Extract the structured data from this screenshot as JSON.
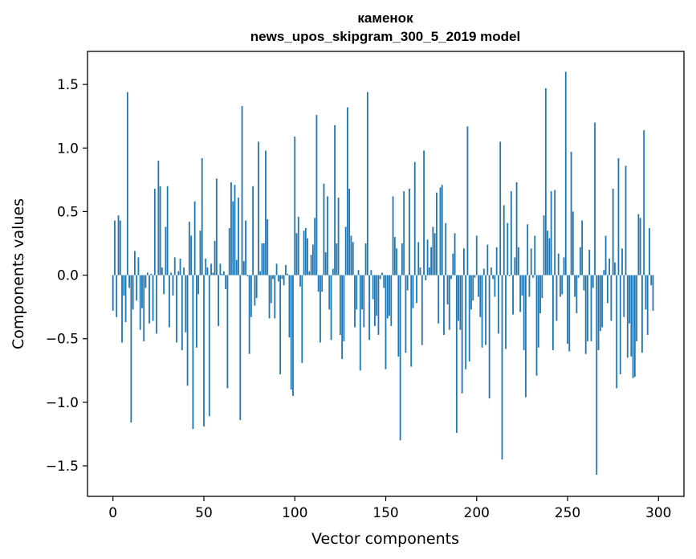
{
  "chart_data": {
    "type": "bar",
    "title": "каменок",
    "subtitle": "news_upos_skipgram_300_5_2019 model",
    "xlabel": "Vector components",
    "ylabel": "Components values",
    "xlim": [
      -14,
      314
    ],
    "ylim": [
      -1.74,
      1.76
    ],
    "xticks": [
      0,
      50,
      100,
      150,
      200,
      250,
      300
    ],
    "yticks": [
      -1.5,
      -1.0,
      -0.5,
      0.0,
      0.5,
      1.0,
      1.5
    ],
    "ytick_labels": [
      "−1.5",
      "−1.0",
      "−0.5",
      "0.0",
      "0.5",
      "1.0",
      "1.5"
    ],
    "bar_color": "#1f77b4",
    "grid": false,
    "values": [
      -0.28,
      0.43,
      -0.33,
      0.47,
      0.43,
      -0.53,
      -0.16,
      -0.37,
      1.44,
      -0.1,
      -1.16,
      -0.27,
      0.19,
      -0.2,
      0.14,
      -0.43,
      -0.26,
      -0.52,
      -0.1,
      0.02,
      -0.38,
      0.01,
      -0.36,
      0.68,
      -0.46,
      0.9,
      0.7,
      0.06,
      -0.15,
      0.38,
      0.7,
      -0.41,
      0.02,
      -0.16,
      0.14,
      -0.53,
      0.03,
      0.13,
      -0.59,
      0.06,
      -0.45,
      -0.87,
      0.42,
      0.31,
      -1.21,
      0.58,
      -0.57,
      -0.15,
      0.35,
      0.92,
      -1.19,
      0.13,
      0.06,
      -1.11,
      0.09,
      0.02,
      0.27,
      0.76,
      -0.4,
      0.09,
      0.01,
      0.03,
      -0.11,
      -0.89,
      0.37,
      0.73,
      0.58,
      0.71,
      0.12,
      0.61,
      -1.14,
      1.33,
      0.11,
      0.43,
      -0.01,
      -0.62,
      -0.33,
      0.7,
      -0.24,
      -0.18,
      1.05,
      0.03,
      0.25,
      0.25,
      0.98,
      0.44,
      -0.34,
      -0.22,
      -0.03,
      -0.34,
      0.09,
      -0.05,
      -0.78,
      -0.03,
      -0.08,
      0.08,
      0.01,
      -0.49,
      -0.9,
      -0.95,
      1.09,
      0.33,
      0.46,
      -0.09,
      -0.69,
      0.35,
      0.37,
      0.29,
      0.03,
      0.16,
      0.24,
      0.45,
      1.26,
      -0.13,
      -0.53,
      -0.13,
      0.72,
      0.18,
      0.62,
      -0.27,
      -0.51,
      0.05,
      1.18,
      0.25,
      0.61,
      -0.47,
      -0.66,
      -0.52,
      0.38,
      1.32,
      0.68,
      0.31,
      0.26,
      -0.41,
      -0.27,
      0.04,
      -0.75,
      -0.27,
      -0.41,
      0.25,
      1.44,
      -0.51,
      0.04,
      -0.19,
      -0.4,
      -0.32,
      -0.47,
      -0.03,
      0.02,
      -0.1,
      -0.74,
      -0.34,
      -0.32,
      -0.4,
      0.62,
      0.3,
      0.21,
      -0.64,
      -1.3,
      0.25,
      0.66,
      -0.61,
      -0.12,
      0.68,
      -0.72,
      -0.26,
      0.89,
      -0.22,
      0.26,
      0.06,
      -0.55,
      0.98,
      -0.04,
      0.28,
      0.06,
      0.22,
      0.38,
      0.33,
      0.65,
      -0.38,
      0.69,
      0.71,
      -0.47,
      0.41,
      -0.23,
      -0.43,
      -0.03,
      0.17,
      0.33,
      -1.24,
      -0.36,
      -0.43,
      -0.93,
      0.21,
      -0.74,
      1.17,
      -0.68,
      -0.27,
      -0.2,
      -0.02,
      0.31,
      -0.17,
      -0.33,
      -0.57,
      0.05,
      -0.55,
      0.24,
      -0.97,
      0.06,
      -0.03,
      -0.17,
      0.22,
      -0.46,
      1.05,
      -1.45,
      0.55,
      -0.58,
      0.41,
      -0.01,
      0.66,
      -0.31,
      0.14,
      0.73,
      0.22,
      -0.29,
      -0.16,
      -0.59,
      -0.96,
      0.4,
      -0.17,
      0.21,
      -0.02,
      0.31,
      -0.79,
      -0.57,
      -0.3,
      -0.18,
      0.47,
      1.47,
      0.35,
      0.29,
      0.66,
      -0.59,
      0.67,
      -0.36,
      0.17,
      -0.17,
      -0.15,
      0.14,
      1.6,
      -0.54,
      -0.6,
      0.97,
      0.5,
      -0.17,
      -0.3,
      -0.02,
      0.22,
      0.43,
      -0.12,
      -0.62,
      -0.52,
      0.2,
      -0.52,
      -0.1,
      1.2,
      -1.57,
      -0.59,
      -0.44,
      -0.41,
      0.04,
      0.31,
      -0.22,
      0.13,
      -0.36,
      0.68,
      0.1,
      -0.89,
      0.92,
      -0.78,
      0.21,
      -0.33,
      0.86,
      -0.65,
      -0.38,
      -0.64,
      -0.81,
      -0.8,
      -0.52,
      0.48,
      0.45,
      -0.61,
      1.14,
      -0.27,
      -0.47,
      0.37,
      -0.08,
      -0.28
    ]
  }
}
